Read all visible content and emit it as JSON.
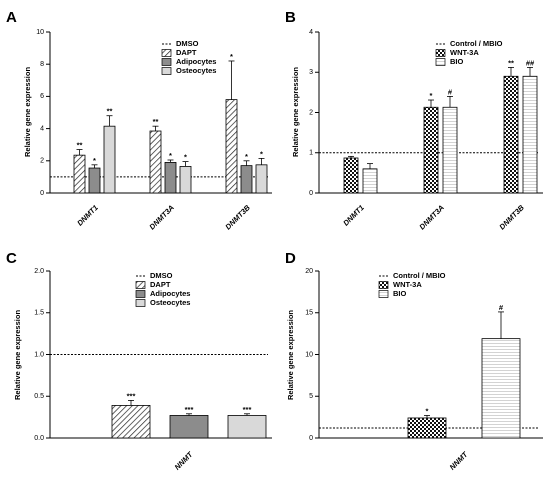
{
  "chart_data": [
    {
      "panel": "A",
      "type": "bar",
      "categories": [
        "DNMT1",
        "DNMT3A",
        "DNMT3B"
      ],
      "ylabel": "Relative gene expression",
      "ylim": [
        0,
        10
      ],
      "yticks": [
        0,
        2,
        4,
        6,
        8,
        10
      ],
      "reference": {
        "name": "DMSO",
        "value": 1
      },
      "legend_position": "top-right",
      "series": [
        {
          "name": "DAPT",
          "pattern": "hatch",
          "values": [
            2.35,
            3.85,
            5.8
          ],
          "errors": [
            0.35,
            0.3,
            2.4
          ],
          "annotations": [
            "**",
            "**",
            "*"
          ]
        },
        {
          "name": "Adipocytes",
          "pattern": "darkgray",
          "values": [
            1.55,
            1.9,
            1.7
          ],
          "errors": [
            0.2,
            0.15,
            0.3
          ],
          "annotations": [
            "*",
            "*",
            "*"
          ]
        },
        {
          "name": "Osteocytes",
          "pattern": "lightgray",
          "values": [
            4.15,
            1.65,
            1.75
          ],
          "errors": [
            0.65,
            0.3,
            0.4
          ],
          "annotations": [
            "**",
            "*",
            "*"
          ]
        }
      ]
    },
    {
      "panel": "B",
      "type": "bar",
      "categories": [
        "DNMT1",
        "DNMT3A",
        "DNMT3B"
      ],
      "ylabel": "Relative gene expression",
      "ylim": [
        0,
        4
      ],
      "yticks": [
        0,
        1,
        2,
        3,
        4
      ],
      "reference": {
        "name": "Control / MBIO",
        "value": 1
      },
      "legend_position": "top-right",
      "series": [
        {
          "name": "WNT-3A",
          "pattern": "checker",
          "values": [
            0.87,
            2.13,
            2.9
          ],
          "errors": [
            0.04,
            0.18,
            0.22
          ],
          "annotations": [
            "",
            "*",
            "**"
          ]
        },
        {
          "name": "BIO",
          "pattern": "lines",
          "values": [
            0.6,
            2.13,
            2.9
          ],
          "errors": [
            0.13,
            0.27,
            0.22
          ],
          "annotations": [
            "",
            "#",
            "##"
          ]
        }
      ]
    },
    {
      "panel": "C",
      "type": "bar",
      "categories": [
        "NNMT"
      ],
      "ylabel": "Relative gene expression",
      "ylim": [
        0,
        2
      ],
      "yticks": [
        "0.0",
        "0.5",
        "1.0",
        "1.5",
        "2.0"
      ],
      "reference": {
        "name": "DMSO",
        "value": 1
      },
      "legend_position": "top-right",
      "series": [
        {
          "name": "DAPT",
          "pattern": "hatch",
          "values": [
            0.39
          ],
          "errors": [
            0.06
          ],
          "annotations": [
            "***"
          ]
        },
        {
          "name": "Adipocytes",
          "pattern": "darkgray",
          "values": [
            0.27
          ],
          "errors": [
            0.02
          ],
          "annotations": [
            "***"
          ]
        },
        {
          "name": "Osteocytes",
          "pattern": "lightgray",
          "values": [
            0.27
          ],
          "errors": [
            0.02
          ],
          "annotations": [
            "***"
          ]
        }
      ]
    },
    {
      "panel": "D",
      "type": "bar",
      "categories": [
        "NNMT"
      ],
      "ylabel": "Relative gene expression",
      "ylim": [
        0,
        20
      ],
      "yticks": [
        0,
        5,
        10,
        15,
        20
      ],
      "reference": {
        "name": "Control / MBIO",
        "value": 1.2
      },
      "legend_position": "top-right",
      "series": [
        {
          "name": "WNT-3A",
          "pattern": "checker",
          "values": [
            2.4
          ],
          "errors": [
            0.3
          ],
          "annotations": [
            "*"
          ]
        },
        {
          "name": "BIO",
          "pattern": "lines",
          "values": [
            11.9
          ],
          "errors": [
            3.2
          ],
          "annotations": [
            "#"
          ]
        }
      ]
    }
  ]
}
